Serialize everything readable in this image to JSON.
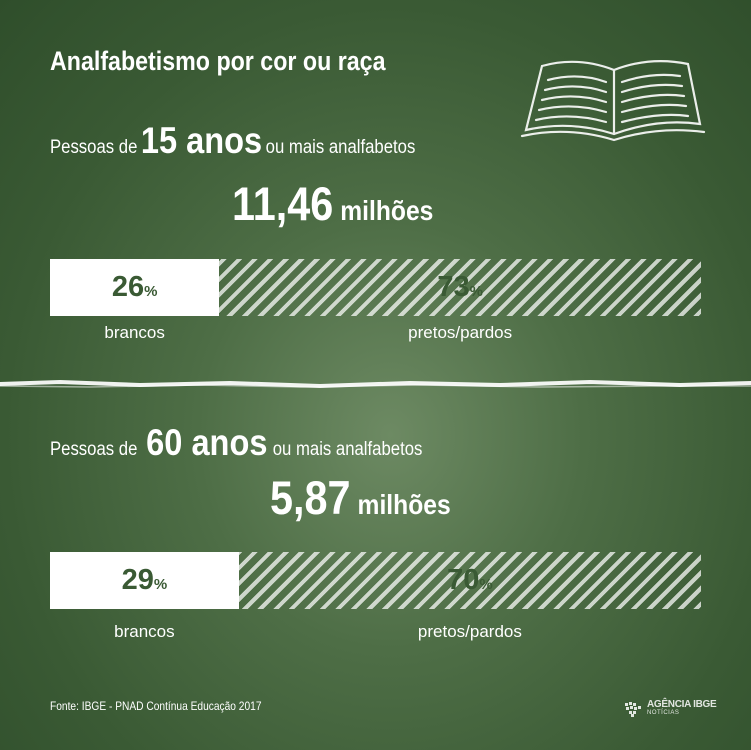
{
  "title": "Analfabetismo por cor ou raça",
  "source": "Fonte: IBGE - PNAD Contínua Educação 2017",
  "logo": {
    "line1": "AGÊNCIA IBGE",
    "line2": "NOTÍCIAS",
    "icon": "brazil-map-icon"
  },
  "book_icon": "book-icon",
  "colors": {
    "background": "#3f5f38",
    "accent": "#3a5a34",
    "bar_white": "#ffffff",
    "hatch": "#d9ded6"
  },
  "chart_data": [
    {
      "type": "bar",
      "stacked": true,
      "subtitle_pre": "Pessoas de",
      "subtitle_age": "15 anos",
      "subtitle_post": "ou mais analfabetos",
      "total_value": "11,46",
      "total_unit": "milhões",
      "categories": [
        "brancos",
        "pretos/pardos"
      ],
      "values": [
        26,
        73
      ],
      "value_labels": [
        "26",
        "73"
      ],
      "unit_symbol": "%"
    },
    {
      "type": "bar",
      "stacked": true,
      "subtitle_pre": "Pessoas de",
      "subtitle_age": "60 anos",
      "subtitle_post": "ou mais analfabetos",
      "total_value": "5,87",
      "total_unit": "milhões",
      "categories": [
        "brancos",
        "pretos/pardos"
      ],
      "values": [
        29,
        70
      ],
      "value_labels": [
        "29",
        "70"
      ],
      "unit_symbol": "%"
    }
  ]
}
